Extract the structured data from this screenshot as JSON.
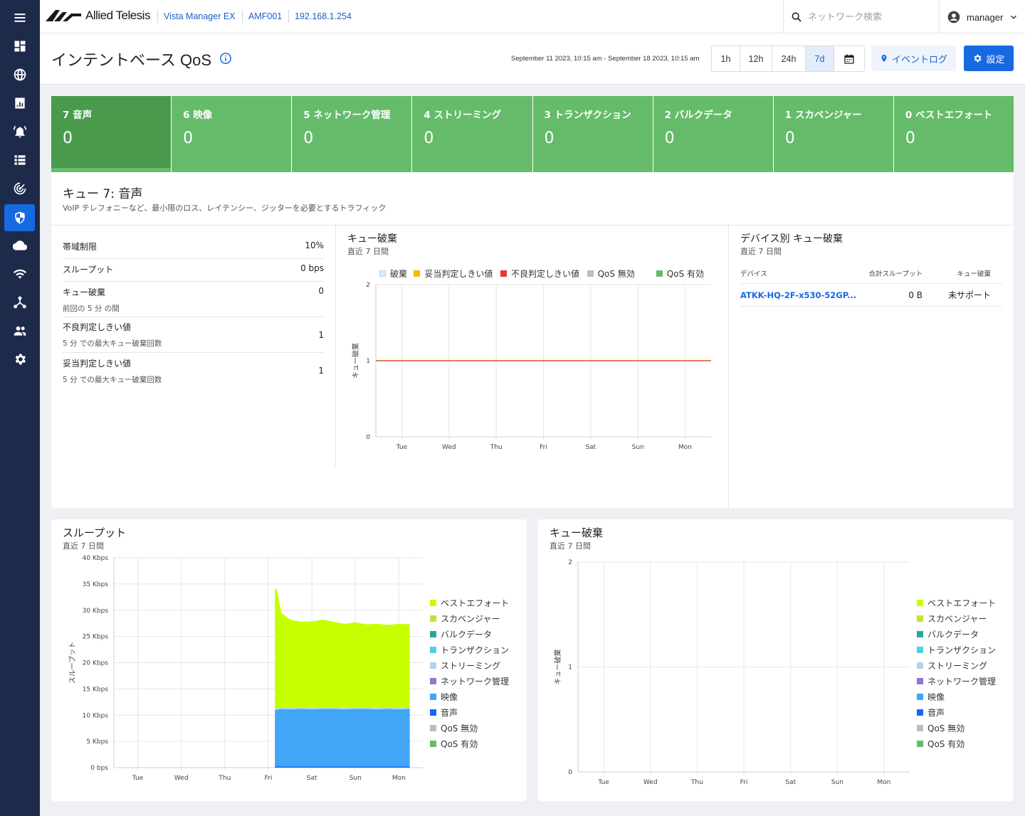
{
  "app": {
    "brand": "Allied Telesis",
    "crumbs": [
      "Vista Manager EX",
      "AMF001",
      "192.168.1.254"
    ],
    "search_placeholder": "ネットワーク検索",
    "user": "manager"
  },
  "sidebar": {
    "items": [
      {
        "icon": "menu-icon"
      },
      {
        "icon": "dashboard-icon"
      },
      {
        "icon": "globe-icon"
      },
      {
        "icon": "report-icon"
      },
      {
        "icon": "alarm-icon"
      },
      {
        "icon": "list-icon"
      },
      {
        "icon": "radar-icon"
      },
      {
        "icon": "shield-icon",
        "active": true
      },
      {
        "icon": "cloud-icon"
      },
      {
        "icon": "wifi-icon"
      },
      {
        "icon": "topology-icon"
      },
      {
        "icon": "users-icon"
      },
      {
        "icon": "gear-icon"
      }
    ]
  },
  "header": {
    "title": "インテントベース QoS",
    "date_range": "September 11 2023, 10:15 am - September 18 2023, 10:15 am",
    "time_ranges": [
      "1h",
      "12h",
      "24h",
      "7d"
    ],
    "selected_range": "7d",
    "event_log": "イベントログ",
    "settings": "設定"
  },
  "queues": [
    {
      "label": "7 音声",
      "value": "0",
      "selected": true
    },
    {
      "label": "6 映像",
      "value": "0"
    },
    {
      "label": "5 ネットワーク管理",
      "value": "0"
    },
    {
      "label": "4 ストリーミング",
      "value": "0"
    },
    {
      "label": "3 トランザクション",
      "value": "0"
    },
    {
      "label": "2 バルクデータ",
      "value": "0"
    },
    {
      "label": "1 スカベンジャー",
      "value": "0"
    },
    {
      "label": "0 ベストエフォート",
      "value": "0"
    }
  ],
  "detail": {
    "title": "キュー 7: 音声",
    "description": "VoIP テレフォニーなど、最小限のロス、レイテンシー、ジッターを必要とするトラフィック",
    "stats": [
      {
        "label": "帯域制限",
        "value": "10%",
        "sub": ""
      },
      {
        "label": "スループット",
        "value": "0 bps",
        "sub": ""
      },
      {
        "label": "キュー破棄",
        "value": "0",
        "sub": "前回の 5 分 の間"
      },
      {
        "label": "不良判定しきい値",
        "value": "1",
        "sub": "5 分 での最大キュー破棄回数"
      },
      {
        "label": "妥当判定しきい値",
        "value": "1",
        "sub": "5 分 での最大キュー破棄回数"
      }
    ],
    "device_section": {
      "title": "デバイス別 キュー破棄",
      "subtitle": "直近 7 日間",
      "columns": [
        "デバイス",
        "合計スループット",
        "キュー破棄"
      ],
      "rows": [
        {
          "device": "ATKK-HQ-2F-x530-52GP...",
          "throughput": "0 B",
          "drops": "未サポート"
        }
      ]
    }
  },
  "colors": {
    "green": "#66bb6a",
    "green_selected": "#4a9a4e",
    "accent": "#1769e0",
    "sidebar": "#1e2a4a"
  },
  "chart_data": [
    {
      "type": "line",
      "title": "キュー破棄",
      "subtitle": "直近 7 日間",
      "ylabel": "キュー破棄",
      "ylim": [
        0,
        2
      ],
      "y_ticks": [
        "0",
        "1",
        "2"
      ],
      "categories": [
        "Tue",
        "Wed",
        "Thu",
        "Fri",
        "Sat",
        "Sun",
        "Mon"
      ],
      "legend": [
        {
          "name": "破棄",
          "color": "#d9ecfb"
        },
        {
          "name": "妥当判定しきい値",
          "color": "#f7b900"
        },
        {
          "name": "不良判定しきい値",
          "color": "#e03a2f"
        },
        {
          "name": "QoS 無効",
          "color": "#bdbdbd"
        },
        {
          "name": "QoS 有効",
          "color": "#66bb6a"
        }
      ],
      "series": [
        {
          "name": "不良判定しきい値",
          "values": [
            1,
            1,
            1,
            1,
            1,
            1,
            1
          ]
        }
      ],
      "grid": true,
      "legend_position": "top"
    },
    {
      "type": "area",
      "title": "スループット",
      "subtitle": "直近 7 日間",
      "ylabel": "スループット",
      "ylim": [
        0,
        40
      ],
      "y_ticks": [
        "0 bps",
        "5 Kbps",
        "10 Kbps",
        "15 Kbps",
        "20 Kbps",
        "25 Kbps",
        "30 Kbps",
        "35 Kbps",
        "40 Kbps"
      ],
      "categories": [
        "Tue",
        "Wed",
        "Thu",
        "Fri",
        "Sat",
        "Sun",
        "Mon"
      ],
      "legend": [
        {
          "name": "ベストエフォート",
          "color": "#c6ff00"
        },
        {
          "name": "スカベンジャー",
          "color": "#cddc39"
        },
        {
          "name": "バルクデータ",
          "color": "#26a69a"
        },
        {
          "name": "トランザクション",
          "color": "#4dd0e1"
        },
        {
          "name": "ストリーミング",
          "color": "#b3d4f0"
        },
        {
          "name": "ネットワーク管理",
          "color": "#9575cd"
        },
        {
          "name": "映像",
          "color": "#42a5f5"
        },
        {
          "name": "音声",
          "color": "#1565ff"
        },
        {
          "name": "QoS 無効",
          "color": "#bdbdbd"
        },
        {
          "name": "QoS 有効",
          "color": "#66bb6a"
        }
      ],
      "x": [
        4.15,
        4.2,
        4.3,
        4.5,
        4.75,
        5.0,
        5.25,
        5.5,
        5.75,
        6.0,
        6.25,
        6.5,
        6.75,
        7.0,
        7.25
      ],
      "series": [
        {
          "name": "音声",
          "values": [
            0.2,
            0.2,
            0.2,
            0.2,
            0.2,
            0.2,
            0.2,
            0.2,
            0.2,
            0.2,
            0.2,
            0.2,
            0.2,
            0.2,
            0.2
          ]
        },
        {
          "name": "映像",
          "values": [
            10.8,
            10.8,
            11.0,
            10.9,
            11.0,
            10.9,
            11.0,
            11.0,
            10.9,
            11.0,
            11.0,
            10.9,
            11.0,
            10.9,
            11.0
          ]
        },
        {
          "name": "ストリーミング",
          "values": [
            0.3,
            0.3,
            0.3,
            0.3,
            0.3,
            0.3,
            0.3,
            0.3,
            0.3,
            0.3,
            0.3,
            0.3,
            0.3,
            0.3,
            0.3
          ]
        },
        {
          "name": "ベストエフォート",
          "values": [
            23.0,
            22.5,
            18.0,
            16.8,
            16.3,
            16.5,
            16.7,
            16.3,
            16.0,
            16.2,
            15.8,
            16.0,
            15.7,
            16.0,
            15.8
          ]
        }
      ],
      "grid": true,
      "legend_position": "right"
    },
    {
      "type": "line",
      "title": "キュー破棄",
      "subtitle": "直近 7 日間",
      "ylabel": "キュー破棄",
      "ylim": [
        0,
        2
      ],
      "y_ticks": [
        "0",
        "1",
        "2"
      ],
      "categories": [
        "Tue",
        "Wed",
        "Thu",
        "Fri",
        "Sat",
        "Sun",
        "Mon"
      ],
      "legend": [
        {
          "name": "ベストエフォート",
          "color": "#c6ff00"
        },
        {
          "name": "スカベンジャー",
          "color": "#cddc39"
        },
        {
          "name": "バルクデータ",
          "color": "#26a69a"
        },
        {
          "name": "トランザクション",
          "color": "#4dd0e1"
        },
        {
          "name": "ストリーミング",
          "color": "#b3d4f0"
        },
        {
          "name": "ネットワーク管理",
          "color": "#9575cd"
        },
        {
          "name": "映像",
          "color": "#42a5f5"
        },
        {
          "name": "音声",
          "color": "#1565ff"
        },
        {
          "name": "QoS 無効",
          "color": "#bdbdbd"
        },
        {
          "name": "QoS 有効",
          "color": "#66bb6a"
        }
      ],
      "series": [],
      "grid": true,
      "legend_position": "right"
    }
  ]
}
